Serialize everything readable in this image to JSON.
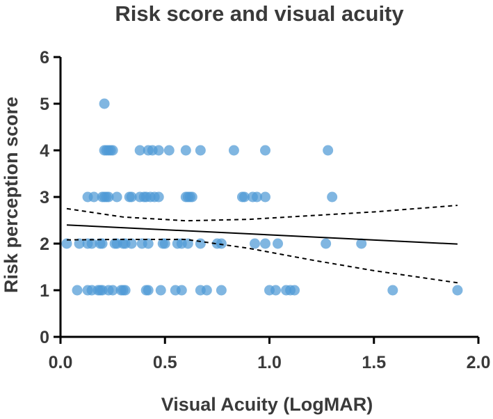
{
  "chart_data": {
    "type": "scatter",
    "title": "Risk score and visual acuity",
    "xlabel": "Visual Acuity (LogMAR)",
    "ylabel": "Risk perception score",
    "xlim": [
      0,
      2
    ],
    "ylim": [
      0,
      6
    ],
    "x_ticks": [
      "0.0",
      "0.5",
      "1.0",
      "1.5",
      "2.0"
    ],
    "y_ticks": [
      "0",
      "1",
      "2",
      "3",
      "4",
      "5",
      "6"
    ],
    "grid": false,
    "legend": "none",
    "colors": {
      "points": "#4f9ad6",
      "text": "#3a3a3a",
      "axis": "#000000",
      "fit_line": "#000000"
    },
    "series": [
      {
        "style": "points",
        "points": [
          [
            0.21,
            5
          ],
          [
            0.21,
            4
          ],
          [
            0.22,
            4
          ],
          [
            0.23,
            4
          ],
          [
            0.24,
            4
          ],
          [
            0.25,
            4
          ],
          [
            0.38,
            4
          ],
          [
            0.42,
            4
          ],
          [
            0.44,
            4
          ],
          [
            0.47,
            4
          ],
          [
            0.52,
            4
          ],
          [
            0.6,
            4
          ],
          [
            0.67,
            4
          ],
          [
            0.83,
            4
          ],
          [
            0.98,
            4
          ],
          [
            1.28,
            4
          ],
          [
            0.13,
            3
          ],
          [
            0.16,
            3
          ],
          [
            0.2,
            3
          ],
          [
            0.21,
            3
          ],
          [
            0.22,
            3
          ],
          [
            0.23,
            3
          ],
          [
            0.27,
            3
          ],
          [
            0.33,
            3
          ],
          [
            0.34,
            3
          ],
          [
            0.38,
            3
          ],
          [
            0.4,
            3
          ],
          [
            0.41,
            3
          ],
          [
            0.43,
            3
          ],
          [
            0.45,
            3
          ],
          [
            0.47,
            3
          ],
          [
            0.6,
            3
          ],
          [
            0.61,
            3
          ],
          [
            0.62,
            3
          ],
          [
            0.63,
            3
          ],
          [
            0.87,
            3
          ],
          [
            0.88,
            3
          ],
          [
            0.92,
            3
          ],
          [
            0.94,
            3
          ],
          [
            0.98,
            3
          ],
          [
            1.3,
            3
          ],
          [
            0.03,
            2
          ],
          [
            0.09,
            2
          ],
          [
            0.13,
            2
          ],
          [
            0.15,
            2
          ],
          [
            0.19,
            2
          ],
          [
            0.2,
            2
          ],
          [
            0.26,
            2
          ],
          [
            0.27,
            2
          ],
          [
            0.3,
            2
          ],
          [
            0.31,
            2
          ],
          [
            0.34,
            2
          ],
          [
            0.39,
            2
          ],
          [
            0.42,
            2
          ],
          [
            0.49,
            2
          ],
          [
            0.5,
            2
          ],
          [
            0.56,
            2
          ],
          [
            0.58,
            2
          ],
          [
            0.61,
            2
          ],
          [
            0.67,
            2
          ],
          [
            0.75,
            2
          ],
          [
            0.77,
            2
          ],
          [
            0.93,
            2
          ],
          [
            0.98,
            2
          ],
          [
            1.04,
            2
          ],
          [
            1.27,
            2
          ],
          [
            1.44,
            2
          ],
          [
            0.08,
            1
          ],
          [
            0.13,
            1
          ],
          [
            0.15,
            1
          ],
          [
            0.18,
            1
          ],
          [
            0.19,
            1
          ],
          [
            0.2,
            1
          ],
          [
            0.23,
            1
          ],
          [
            0.25,
            1
          ],
          [
            0.29,
            1
          ],
          [
            0.3,
            1
          ],
          [
            0.31,
            1
          ],
          [
            0.41,
            1
          ],
          [
            0.42,
            1
          ],
          [
            0.48,
            1
          ],
          [
            0.55,
            1
          ],
          [
            0.58,
            1
          ],
          [
            0.67,
            1
          ],
          [
            0.7,
            1
          ],
          [
            0.77,
            1
          ],
          [
            1.0,
            1
          ],
          [
            1.03,
            1
          ],
          [
            1.08,
            1
          ],
          [
            1.1,
            1
          ],
          [
            1.12,
            1
          ],
          [
            1.59,
            1
          ],
          [
            1.9,
            1
          ]
        ]
      },
      {
        "style": "solid-line",
        "x": [
          0.03,
          1.9
        ],
        "y": [
          2.4,
          1.99
        ]
      },
      {
        "style": "dashed-line",
        "x": [
          0.03,
          0.3,
          0.6,
          0.9,
          1.2,
          1.5,
          1.9
        ],
        "y": [
          2.75,
          2.57,
          2.49,
          2.52,
          2.6,
          2.68,
          2.82
        ]
      },
      {
        "style": "dashed-line",
        "x": [
          0.03,
          0.3,
          0.6,
          0.9,
          1.2,
          1.5,
          1.9
        ],
        "y": [
          2.08,
          2.09,
          2.09,
          1.9,
          1.65,
          1.42,
          1.16
        ]
      }
    ]
  }
}
